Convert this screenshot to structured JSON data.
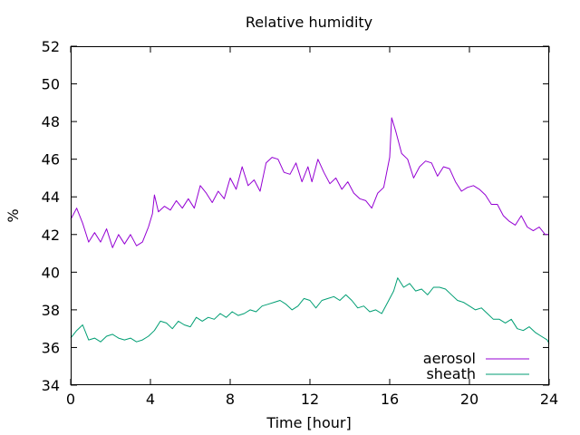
{
  "chart_data": {
    "type": "line",
    "title": "Relative humidity",
    "xlabel": "Time [hour]",
    "ylabel": "%",
    "xlim": [
      0,
      24
    ],
    "ylim": [
      34,
      52
    ],
    "x_ticks": [
      "0",
      "4",
      "8",
      "12",
      "16",
      "20",
      "24"
    ],
    "y_ticks": [
      "34",
      "36",
      "38",
      "40",
      "42",
      "44",
      "46",
      "48",
      "50",
      "52"
    ],
    "grid": false,
    "legend_position": "bottom-right",
    "series": [
      {
        "name": "aerosol",
        "color": "#9400d3",
        "points": [
          [
            0,
            42.8
          ],
          [
            0.3,
            43.4
          ],
          [
            0.6,
            42.6
          ],
          [
            0.9,
            41.6
          ],
          [
            1.2,
            42.1
          ],
          [
            1.5,
            41.6
          ],
          [
            1.8,
            42.3
          ],
          [
            2.1,
            41.3
          ],
          [
            2.4,
            42.0
          ],
          [
            2.7,
            41.5
          ],
          [
            3.0,
            42.0
          ],
          [
            3.3,
            41.4
          ],
          [
            3.6,
            41.6
          ],
          [
            3.9,
            42.4
          ],
          [
            4.1,
            43.1
          ],
          [
            4.2,
            44.1
          ],
          [
            4.4,
            43.2
          ],
          [
            4.7,
            43.5
          ],
          [
            5.0,
            43.3
          ],
          [
            5.3,
            43.8
          ],
          [
            5.6,
            43.4
          ],
          [
            5.9,
            43.9
          ],
          [
            6.2,
            43.4
          ],
          [
            6.5,
            44.6
          ],
          [
            6.8,
            44.2
          ],
          [
            7.1,
            43.7
          ],
          [
            7.4,
            44.3
          ],
          [
            7.7,
            43.9
          ],
          [
            8.0,
            45.0
          ],
          [
            8.3,
            44.4
          ],
          [
            8.6,
            45.6
          ],
          [
            8.9,
            44.6
          ],
          [
            9.2,
            44.9
          ],
          [
            9.5,
            44.3
          ],
          [
            9.8,
            45.8
          ],
          [
            10.1,
            46.1
          ],
          [
            10.4,
            46.0
          ],
          [
            10.7,
            45.3
          ],
          [
            11.0,
            45.2
          ],
          [
            11.3,
            45.8
          ],
          [
            11.6,
            44.8
          ],
          [
            11.9,
            45.6
          ],
          [
            12.1,
            44.8
          ],
          [
            12.4,
            46.0
          ],
          [
            12.7,
            45.3
          ],
          [
            13.0,
            44.7
          ],
          [
            13.3,
            45.0
          ],
          [
            13.6,
            44.4
          ],
          [
            13.9,
            44.8
          ],
          [
            14.2,
            44.2
          ],
          [
            14.5,
            43.9
          ],
          [
            14.8,
            43.8
          ],
          [
            15.1,
            43.4
          ],
          [
            15.4,
            44.2
          ],
          [
            15.7,
            44.5
          ],
          [
            16.0,
            46.1
          ],
          [
            16.1,
            48.2
          ],
          [
            16.3,
            47.5
          ],
          [
            16.6,
            46.3
          ],
          [
            16.9,
            46.0
          ],
          [
            17.2,
            45.0
          ],
          [
            17.5,
            45.6
          ],
          [
            17.8,
            45.9
          ],
          [
            18.1,
            45.8
          ],
          [
            18.4,
            45.1
          ],
          [
            18.7,
            45.6
          ],
          [
            19.0,
            45.5
          ],
          [
            19.3,
            44.8
          ],
          [
            19.6,
            44.3
          ],
          [
            19.9,
            44.5
          ],
          [
            20.2,
            44.6
          ],
          [
            20.5,
            44.4
          ],
          [
            20.8,
            44.1
          ],
          [
            21.1,
            43.6
          ],
          [
            21.4,
            43.6
          ],
          [
            21.7,
            43.0
          ],
          [
            22.0,
            42.7
          ],
          [
            22.3,
            42.5
          ],
          [
            22.6,
            43.0
          ],
          [
            22.9,
            42.4
          ],
          [
            23.2,
            42.2
          ],
          [
            23.5,
            42.4
          ],
          [
            23.8,
            42.0
          ],
          [
            24.0,
            42.0
          ]
        ]
      },
      {
        "name": "sheath",
        "color": "#009e73",
        "points": [
          [
            0,
            36.5
          ],
          [
            0.3,
            36.9
          ],
          [
            0.6,
            37.2
          ],
          [
            0.9,
            36.4
          ],
          [
            1.2,
            36.5
          ],
          [
            1.5,
            36.3
          ],
          [
            1.8,
            36.6
          ],
          [
            2.1,
            36.7
          ],
          [
            2.4,
            36.5
          ],
          [
            2.7,
            36.4
          ],
          [
            3.0,
            36.5
          ],
          [
            3.3,
            36.3
          ],
          [
            3.6,
            36.4
          ],
          [
            3.9,
            36.6
          ],
          [
            4.2,
            36.9
          ],
          [
            4.5,
            37.4
          ],
          [
            4.8,
            37.3
          ],
          [
            5.1,
            37.0
          ],
          [
            5.4,
            37.4
          ],
          [
            5.7,
            37.2
          ],
          [
            6.0,
            37.1
          ],
          [
            6.3,
            37.6
          ],
          [
            6.6,
            37.4
          ],
          [
            6.9,
            37.6
          ],
          [
            7.2,
            37.5
          ],
          [
            7.5,
            37.8
          ],
          [
            7.8,
            37.6
          ],
          [
            8.1,
            37.9
          ],
          [
            8.4,
            37.7
          ],
          [
            8.7,
            37.8
          ],
          [
            9.0,
            38.0
          ],
          [
            9.3,
            37.9
          ],
          [
            9.6,
            38.2
          ],
          [
            9.9,
            38.3
          ],
          [
            10.2,
            38.4
          ],
          [
            10.5,
            38.5
          ],
          [
            10.8,
            38.3
          ],
          [
            11.1,
            38.0
          ],
          [
            11.4,
            38.2
          ],
          [
            11.7,
            38.6
          ],
          [
            12.0,
            38.5
          ],
          [
            12.3,
            38.1
          ],
          [
            12.6,
            38.5
          ],
          [
            12.9,
            38.6
          ],
          [
            13.2,
            38.7
          ],
          [
            13.5,
            38.5
          ],
          [
            13.8,
            38.8
          ],
          [
            14.1,
            38.5
          ],
          [
            14.4,
            38.1
          ],
          [
            14.7,
            38.2
          ],
          [
            15.0,
            37.9
          ],
          [
            15.3,
            38.0
          ],
          [
            15.6,
            37.8
          ],
          [
            15.9,
            38.4
          ],
          [
            16.2,
            39.0
          ],
          [
            16.4,
            39.7
          ],
          [
            16.7,
            39.2
          ],
          [
            17.0,
            39.4
          ],
          [
            17.3,
            39.0
          ],
          [
            17.6,
            39.1
          ],
          [
            17.9,
            38.8
          ],
          [
            18.2,
            39.2
          ],
          [
            18.5,
            39.2
          ],
          [
            18.8,
            39.1
          ],
          [
            19.1,
            38.8
          ],
          [
            19.4,
            38.5
          ],
          [
            19.7,
            38.4
          ],
          [
            20.0,
            38.2
          ],
          [
            20.3,
            38.0
          ],
          [
            20.6,
            38.1
          ],
          [
            20.9,
            37.8
          ],
          [
            21.2,
            37.5
          ],
          [
            21.5,
            37.5
          ],
          [
            21.8,
            37.3
          ],
          [
            22.1,
            37.5
          ],
          [
            22.4,
            37.0
          ],
          [
            22.7,
            36.9
          ],
          [
            23.0,
            37.1
          ],
          [
            23.3,
            36.8
          ],
          [
            23.6,
            36.6
          ],
          [
            23.9,
            36.4
          ],
          [
            24.0,
            36.2
          ]
        ]
      }
    ]
  }
}
